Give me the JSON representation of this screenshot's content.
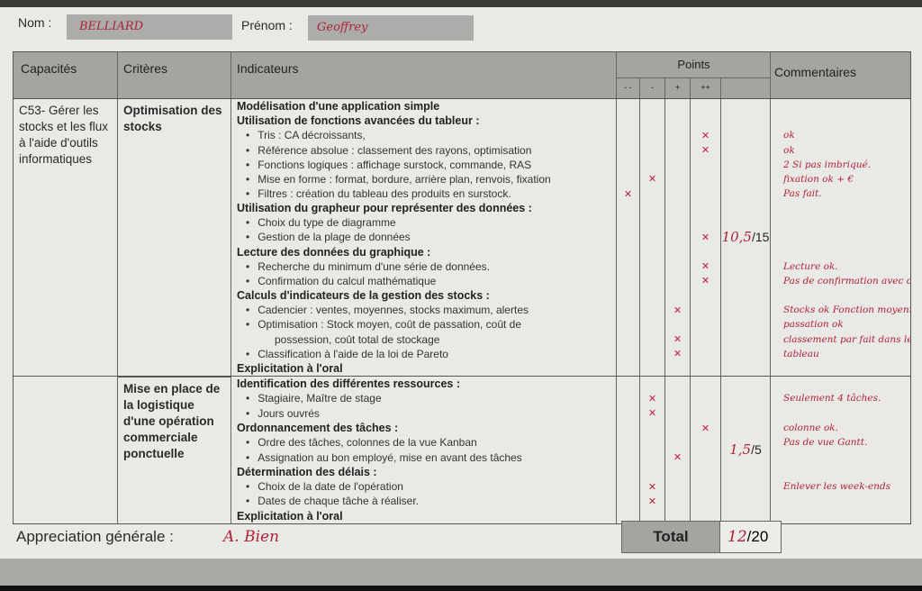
{
  "header": {
    "nom_label": "Nom :",
    "nom_value": "BELLIARD",
    "prenom_label": "Prénom :",
    "prenom_value": "Geoffrey"
  },
  "table": {
    "columns": {
      "capacites": "Capacités",
      "criteres": "Critères",
      "indicateurs": "Indicateurs",
      "points": "Points",
      "commentaires": "Commentaires"
    },
    "point_levels": [
      "- -",
      "-",
      "+",
      "++"
    ],
    "capacite": "C53- Gérer les stocks et les flux à l'aide d'outils informatiques",
    "sections": [
      {
        "critere": "Optimisation des stocks",
        "score": "10,5",
        "max": "/15",
        "lines": [
          {
            "t": "h",
            "text": "Modélisation d'une application simple"
          },
          {
            "t": "h",
            "text": "Utilisation de fonctions avancées du tableur :"
          },
          {
            "t": "b",
            "text": "Tris : CA décroissants,",
            "mark": "++",
            "comment": "ok"
          },
          {
            "t": "b",
            "text": "Référence absolue : classement des rayons, optimisation",
            "mark": "++",
            "comment": "ok"
          },
          {
            "t": "b",
            "text": "Fonctions logiques : affichage surstock, commande, RAS",
            "comment": "2 Si pas imbriqué."
          },
          {
            "t": "b",
            "text": "Mise en forme : format, bordure, arrière plan, renvois, fixation",
            "mark": "-",
            "comment": "fixation ok + €"
          },
          {
            "t": "b",
            "text": "Filtres : création du tableau des produits en surstock.",
            "mark": "- -",
            "comment": "Pas fait."
          },
          {
            "t": "h",
            "text": "Utilisation du grapheur pour représenter des données :"
          },
          {
            "t": "b",
            "text": "Choix du type de diagramme"
          },
          {
            "t": "b",
            "text": "Gestion de la plage de données",
            "mark": "++"
          },
          {
            "t": "h",
            "text": "Lecture des données du graphique :"
          },
          {
            "t": "b",
            "text": "Recherche du minimum d'une série de données.",
            "mark": "++",
            "comment": "Lecture ok."
          },
          {
            "t": "b",
            "text": "Confirmation du calcul mathématique",
            "mark": "++",
            "comment": "Pas de confirmation avec calcul"
          },
          {
            "t": "h",
            "text": "Calculs d'indicateurs de la gestion des stocks :"
          },
          {
            "t": "b",
            "text": "Cadencier : ventes, moyennes, stocks maximum, alertes",
            "mark": "+",
            "comment": "Stocks ok Fonction moyenne"
          },
          {
            "t": "b",
            "text": "Optimisation : Stock moyen, coût de passation, coût de",
            "comment": "passation ok"
          },
          {
            "t": "c",
            "text": "possession, coût total de stockage",
            "mark": "+",
            "comment": "classement par fait dans le"
          },
          {
            "t": "b",
            "text": "Classification à l'aide de la loi de Pareto",
            "mark": "+",
            "comment": "tableau"
          },
          {
            "t": "h",
            "text": "Explicitation à l'oral"
          }
        ]
      },
      {
        "critere": "Mise en place de la logistique d'une opération commerciale ponctuelle",
        "score": "1,5",
        "max": "/5",
        "lines": [
          {
            "t": "h",
            "text": "Identification des différentes ressources :"
          },
          {
            "t": "b",
            "text": "Stagiaire, Maître de stage",
            "mark": "-",
            "comment": "Seulement 4 tâches."
          },
          {
            "t": "b",
            "text": "Jours ouvrés",
            "mark": "-"
          },
          {
            "t": "h",
            "text": "Ordonnancement des tâches :",
            "mark": "++",
            "comment": "colonne ok."
          },
          {
            "t": "b",
            "text": "Ordre des tâches, colonnes de la vue Kanban",
            "comment": "Pas de vue Gantt."
          },
          {
            "t": "b",
            "text": "Assignation au bon employé, mise en avant des tâches",
            "mark": "+"
          },
          {
            "t": "h",
            "text": "Détermination des délais :"
          },
          {
            "t": "b",
            "text": "Choix  de la date de l'opération",
            "mark": "-",
            "comment": "Enlever les week-ends"
          },
          {
            "t": "b",
            "text": "Dates de chaque tâche à réaliser.",
            "mark": "-"
          },
          {
            "t": "h",
            "text": "Explicitation à l'oral"
          }
        ]
      }
    ]
  },
  "footer": {
    "appreciation_label": "Appreciation générale :",
    "appreciation_value": "A. Bien",
    "total_label": "Total",
    "total_value": "12",
    "total_max": "/20"
  },
  "colors": {
    "ink": "#b0223a",
    "header_gray": "#a4a4a1"
  },
  "icons": {
    "mark": "cross-mark"
  }
}
